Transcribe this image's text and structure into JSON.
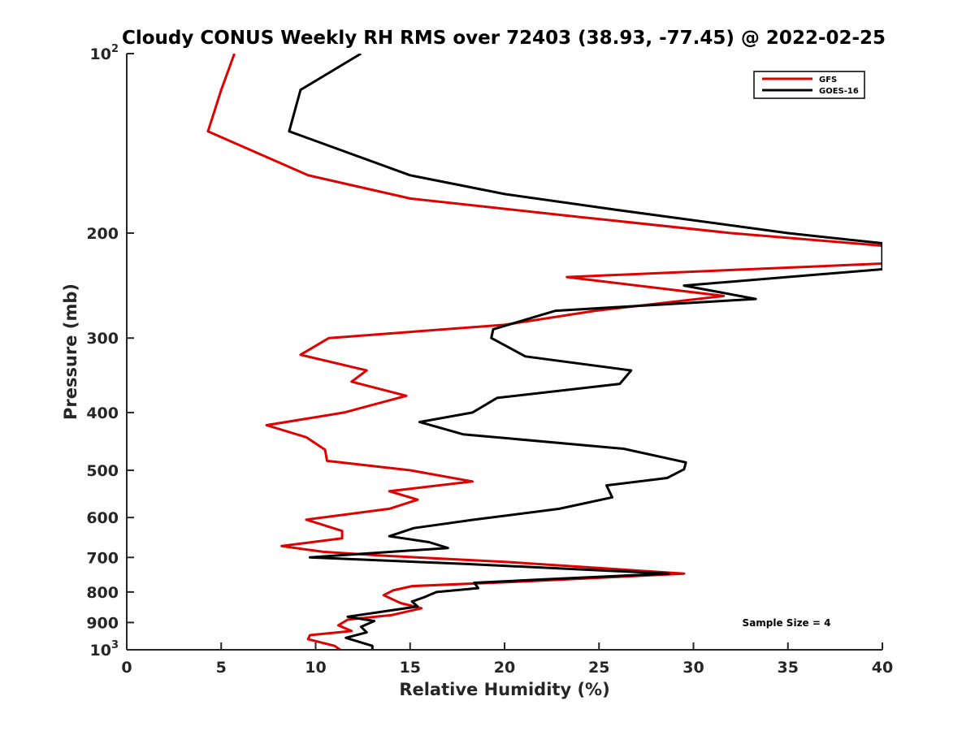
{
  "chart_data": {
    "type": "line",
    "title": "Cloudy CONUS Weekly RH RMS over 72403 (38.93, -77.45) @ 2022-02-25",
    "xlabel": "Relative Humidity (%)",
    "ylabel": "Pressure (mb)",
    "xlim": [
      0,
      40
    ],
    "ylim": [
      100,
      1000
    ],
    "yscale": "log",
    "y_reversed": true,
    "grid": false,
    "legend_position": "top-right",
    "x_ticks": [
      "0",
      "5",
      "10",
      "15",
      "20",
      "25",
      "30",
      "35",
      "40"
    ],
    "y_ticks": [
      {
        "value": 100,
        "base": "10",
        "exp": "2"
      },
      {
        "value": 200,
        "label": "200"
      },
      {
        "value": 300,
        "label": "300"
      },
      {
        "value": 400,
        "label": "400"
      },
      {
        "value": 500,
        "label": "500"
      },
      {
        "value": 600,
        "label": "600"
      },
      {
        "value": 700,
        "label": "700"
      },
      {
        "value": 800,
        "label": "800"
      },
      {
        "value": 900,
        "label": "900"
      },
      {
        "value": 1000,
        "base": "10",
        "exp": "3"
      }
    ],
    "annotation": "Sample Size = 4",
    "series": [
      {
        "name": "GFS",
        "color": "#e00000",
        "points": [
          [
            5.7,
            100
          ],
          [
            5,
            115
          ],
          [
            4.3,
            135
          ],
          [
            9.6,
            160
          ],
          [
            15,
            175
          ],
          [
            24,
            188
          ],
          [
            32,
            200
          ],
          [
            40,
            210
          ],
          [
            40,
            225
          ],
          [
            23.3,
            237
          ],
          [
            31.6,
            255
          ],
          [
            24.8,
            270
          ],
          [
            20,
            285
          ],
          [
            10.7,
            300
          ],
          [
            9.2,
            320
          ],
          [
            12.7,
            340
          ],
          [
            11.9,
            355
          ],
          [
            14.8,
            375
          ],
          [
            11.5,
            400
          ],
          [
            7.4,
            420
          ],
          [
            9.5,
            440
          ],
          [
            10.5,
            462
          ],
          [
            10.6,
            482
          ],
          [
            15,
            500
          ],
          [
            18.3,
            522
          ],
          [
            13.9,
            542
          ],
          [
            15.4,
            560
          ],
          [
            13.9,
            580
          ],
          [
            9.5,
            605
          ],
          [
            11.4,
            632
          ],
          [
            11.4,
            650
          ],
          [
            8.2,
            670
          ],
          [
            10.4,
            685
          ],
          [
            13.5,
            695
          ],
          [
            20,
            712
          ],
          [
            29.5,
            745
          ],
          [
            21,
            768
          ],
          [
            15.1,
            782
          ],
          [
            14.1,
            795
          ],
          [
            13.6,
            810
          ],
          [
            14.5,
            835
          ],
          [
            15.6,
            852
          ],
          [
            14,
            875
          ],
          [
            13.2,
            880
          ],
          [
            11.7,
            890
          ],
          [
            11.2,
            910
          ],
          [
            11.9,
            930
          ],
          [
            9.7,
            945
          ],
          [
            9.6,
            960
          ],
          [
            11,
            985
          ],
          [
            11.3,
            1000
          ]
        ]
      },
      {
        "name": "GOES-16",
        "color": "#000000",
        "points": [
          [
            12.4,
            100
          ],
          [
            9.2,
            115
          ],
          [
            8.6,
            135
          ],
          [
            15,
            160
          ],
          [
            20,
            172
          ],
          [
            26,
            183
          ],
          [
            35,
            200
          ],
          [
            40,
            208
          ],
          [
            40,
            230
          ],
          [
            29.5,
            245
          ],
          [
            33.3,
            258
          ],
          [
            22.7,
            270
          ],
          [
            19.4,
            290
          ],
          [
            19.3,
            300
          ],
          [
            21.1,
            322
          ],
          [
            26.7,
            340
          ],
          [
            26.1,
            358
          ],
          [
            19.6,
            378
          ],
          [
            18.3,
            400
          ],
          [
            15.5,
            415
          ],
          [
            17.8,
            435
          ],
          [
            26.3,
            460
          ],
          [
            29.6,
            485
          ],
          [
            29.5,
            498
          ],
          [
            28.6,
            515
          ],
          [
            25.4,
            530
          ],
          [
            25.7,
            555
          ],
          [
            22.9,
            580
          ],
          [
            18.4,
            605
          ],
          [
            15.2,
            625
          ],
          [
            13.9,
            645
          ],
          [
            16,
            660
          ],
          [
            17,
            675
          ],
          [
            12.5,
            690
          ],
          [
            9.7,
            700
          ],
          [
            18,
            718
          ],
          [
            28.7,
            745
          ],
          [
            22,
            762
          ],
          [
            18.4,
            772
          ],
          [
            18.6,
            788
          ],
          [
            16.4,
            800
          ],
          [
            15.8,
            815
          ],
          [
            15.1,
            830
          ],
          [
            15.4,
            846
          ],
          [
            11.7,
            880
          ],
          [
            13.1,
            895
          ],
          [
            12.4,
            915
          ],
          [
            12.7,
            935
          ],
          [
            11.6,
            955
          ],
          [
            13,
            985
          ],
          [
            13,
            1000
          ]
        ]
      }
    ]
  }
}
